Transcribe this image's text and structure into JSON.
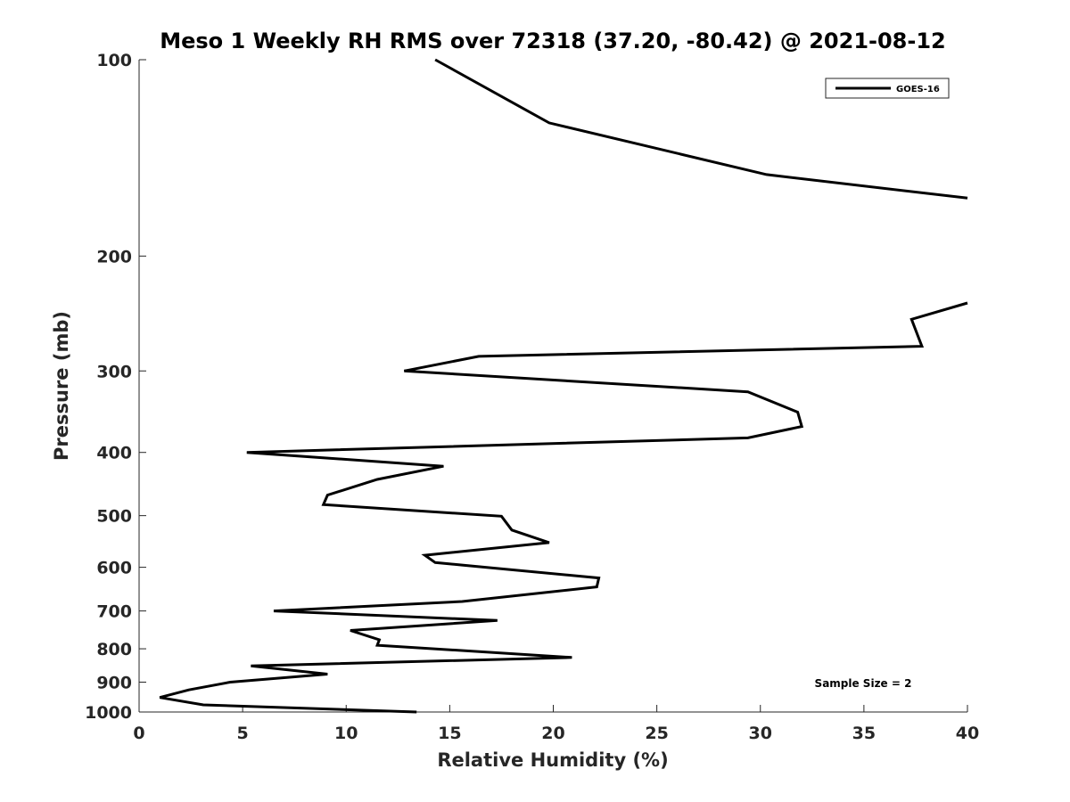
{
  "chart_data": {
    "type": "line",
    "title": "Meso 1 Weekly RH RMS over 72318 (37.20, -80.42) @ 2021-08-12",
    "xlabel": "Relative Humidity (%)",
    "ylabel": "Pressure (mb)",
    "xlim": [
      0,
      40
    ],
    "ylim": [
      1000,
      100
    ],
    "yscale": "log",
    "y_reversed": true,
    "xticks": [
      0,
      5,
      10,
      15,
      20,
      25,
      30,
      35,
      40
    ],
    "yticks": [
      100,
      200,
      300,
      400,
      500,
      600,
      700,
      800,
      900,
      1000
    ],
    "legend_position": "top-right",
    "annotation": "Sample Size = 2",
    "grid": false,
    "series": [
      {
        "name": "GOES-16",
        "color": "#000000",
        "segments": [
          [
            [
              14.3,
              100
            ],
            [
              19.8,
              125
            ],
            [
              30.3,
              150
            ],
            [
              40.0,
              163
            ]
          ],
          [
            [
              40.0,
              236
            ],
            [
              37.3,
              250
            ],
            [
              37.8,
              275
            ],
            [
              16.4,
              285
            ],
            [
              12.8,
              300
            ],
            [
              29.4,
              323
            ],
            [
              31.8,
              347
            ],
            [
              32.0,
              365
            ],
            [
              29.4,
              380
            ],
            [
              5.2,
              400
            ],
            [
              14.7,
              420
            ],
            [
              11.5,
              440
            ],
            [
              9.1,
              465
            ],
            [
              8.9,
              481
            ],
            [
              17.5,
              501
            ],
            [
              18.0,
              526
            ],
            [
              19.8,
              550
            ],
            [
              13.8,
              575
            ],
            [
              14.3,
              590
            ],
            [
              22.2,
              623
            ],
            [
              22.1,
              643
            ],
            [
              15.6,
              677
            ],
            [
              6.5,
              700
            ],
            [
              17.3,
              724
            ],
            [
              10.2,
              750
            ],
            [
              11.6,
              775
            ],
            [
              11.5,
              790
            ],
            [
              20.9,
              825
            ],
            [
              5.4,
              850
            ],
            [
              9.1,
              875
            ],
            [
              4.4,
              900
            ],
            [
              2.4,
              925
            ],
            [
              1.0,
              950
            ],
            [
              3.1,
              975
            ],
            [
              13.4,
              1000
            ]
          ]
        ]
      }
    ]
  }
}
